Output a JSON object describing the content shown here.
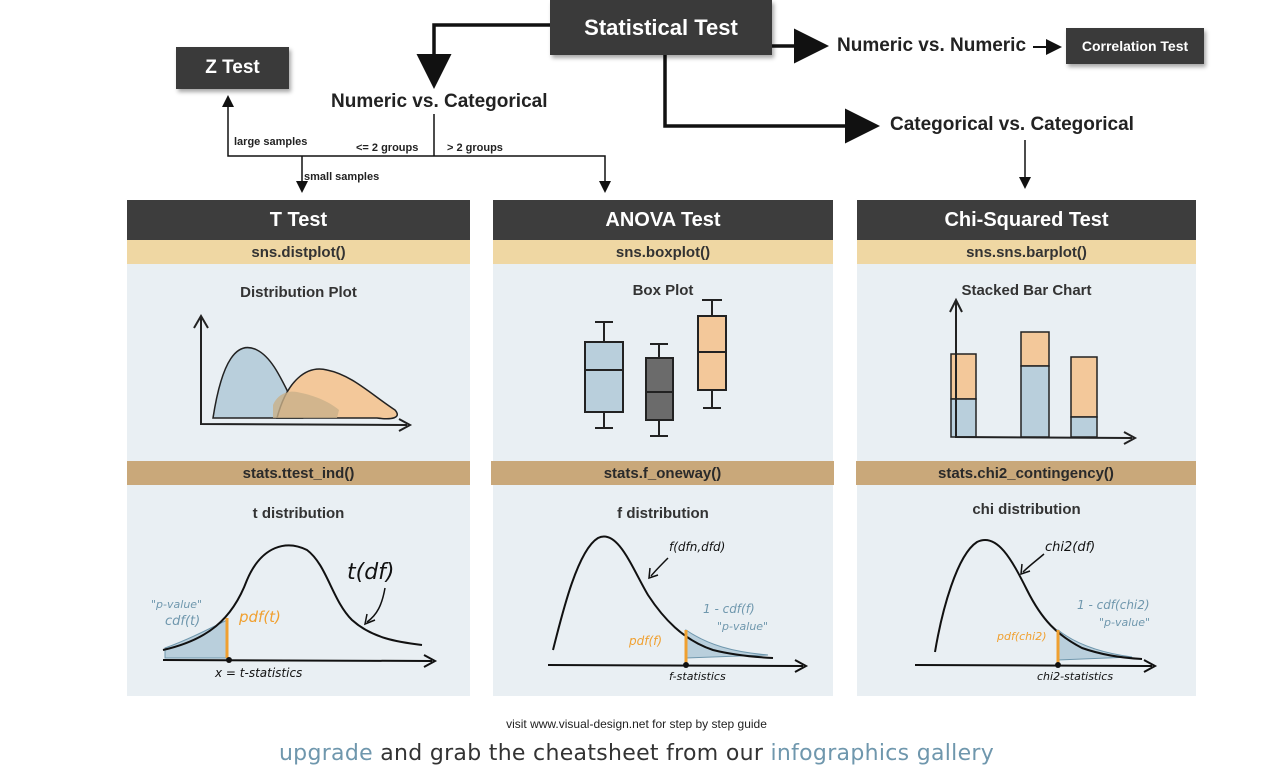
{
  "top": {
    "statistical_test": "Statistical Test",
    "z_test": "Z Test",
    "numeric_vs_categorical": "Numeric vs. Categorical",
    "numeric_vs_numeric": "Numeric vs. Numeric",
    "correlation_test": "Correlation Test",
    "categorical_vs_categorical": "Categorical vs. Categorical",
    "large_samples": "large samples",
    "small_samples": "small samples",
    "le2_groups": "<= 2 groups",
    "gt2_groups": "> 2 groups"
  },
  "columns": [
    {
      "title": "T Test",
      "plot_func": "sns.distplot()",
      "plot_title": "Distribution Plot",
      "stats_func": "stats.ttest_ind()",
      "dist_title": "t distribution",
      "annotations": {
        "curve": "t(df)",
        "pvalue": "\"p-value\"",
        "cdf": "cdf(t)",
        "pdf": "pdf(t)",
        "axis": "x = t-statistics"
      }
    },
    {
      "title": "ANOVA Test",
      "plot_func": "sns.boxplot()",
      "plot_title": "Box Plot",
      "stats_func": "stats.f_oneway()",
      "dist_title": "f distribution",
      "annotations": {
        "curve": "f(dfn,dfd)",
        "cdf": "1 - cdf(f)",
        "pvalue": "\"p-value\"",
        "pdf": "pdf(f)",
        "axis": "f-statistics"
      }
    },
    {
      "title": "Chi-Squared Test",
      "plot_func": "sns.sns.barplot()",
      "plot_title": "Stacked Bar Chart",
      "stats_func": "stats.chi2_contingency()",
      "dist_title": "chi distribution",
      "annotations": {
        "curve": "chi2(df)",
        "cdf": "1 - cdf(chi2)",
        "pvalue": "\"p-value\"",
        "pdf": "pdf(chi2)",
        "axis": "chi2-statistics"
      }
    }
  ],
  "footer": {
    "visit": "visit www.visual-design.net for step by step guide",
    "upgrade": "upgrade",
    "middle": " and grab the cheatsheet from our ",
    "gallery": "infographics gallery"
  },
  "colors": {
    "dark_box": "#3a3a3a",
    "panel_bg": "#e9eff3",
    "func_light": "#efd7a3",
    "func_dark": "#c9a87a",
    "blue_fill": "#b9cfdc",
    "orange_fill": "#f3c89a",
    "orange_line": "#f0a030",
    "gray_box": "#6b6b6b",
    "link": "#6f97ad"
  }
}
